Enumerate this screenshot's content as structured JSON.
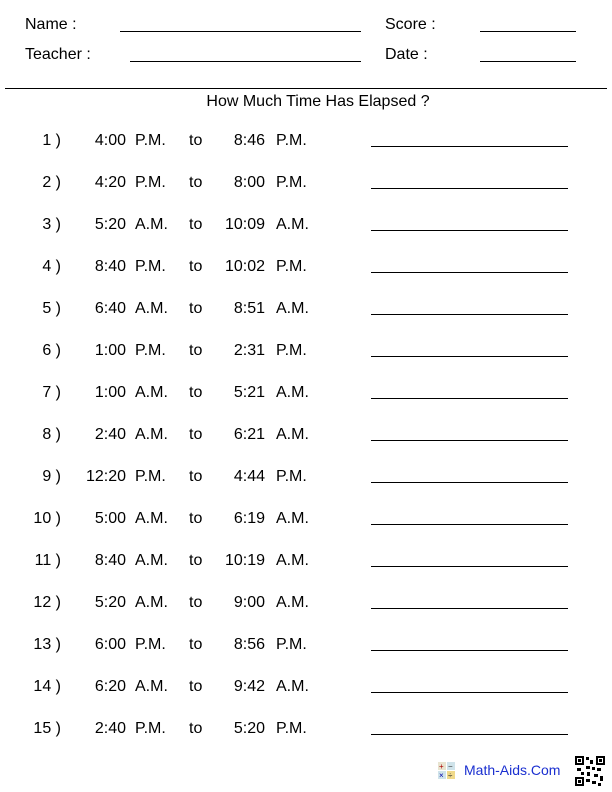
{
  "header": {
    "name_label": "Name :",
    "score_label": "Score :",
    "teacher_label": "Teacher :",
    "date_label": "Date :"
  },
  "title": "How Much Time Has Elapsed ?",
  "connector": "to",
  "problems": [
    {
      "num": "1 )",
      "start": "4:00",
      "start_period": "P.M.",
      "end": "8:46",
      "end_period": "P.M."
    },
    {
      "num": "2 )",
      "start": "4:20",
      "start_period": "P.M.",
      "end": "8:00",
      "end_period": "P.M."
    },
    {
      "num": "3 )",
      "start": "5:20",
      "start_period": "A.M.",
      "end": "10:09",
      "end_period": "A.M."
    },
    {
      "num": "4 )",
      "start": "8:40",
      "start_period": "P.M.",
      "end": "10:02",
      "end_period": "P.M."
    },
    {
      "num": "5 )",
      "start": "6:40",
      "start_period": "A.M.",
      "end": "8:51",
      "end_period": "A.M."
    },
    {
      "num": "6 )",
      "start": "1:00",
      "start_period": "P.M.",
      "end": "2:31",
      "end_period": "P.M."
    },
    {
      "num": "7 )",
      "start": "1:00",
      "start_period": "A.M.",
      "end": "5:21",
      "end_period": "A.M."
    },
    {
      "num": "8 )",
      "start": "2:40",
      "start_period": "A.M.",
      "end": "6:21",
      "end_period": "A.M."
    },
    {
      "num": "9 )",
      "start": "12:20",
      "start_period": "P.M.",
      "end": "4:44",
      "end_period": "P.M."
    },
    {
      "num": "10 )",
      "start": "5:00",
      "start_period": "A.M.",
      "end": "6:19",
      "end_period": "A.M."
    },
    {
      "num": "11 )",
      "start": "8:40",
      "start_period": "A.M.",
      "end": "10:19",
      "end_period": "A.M."
    },
    {
      "num": "12 )",
      "start": "5:20",
      "start_period": "A.M.",
      "end": "9:00",
      "end_period": "A.M."
    },
    {
      "num": "13 )",
      "start": "6:00",
      "start_period": "P.M.",
      "end": "8:56",
      "end_period": "P.M."
    },
    {
      "num": "14 )",
      "start": "6:20",
      "start_period": "A.M.",
      "end": "9:42",
      "end_period": "A.M."
    },
    {
      "num": "15 )",
      "start": "2:40",
      "start_period": "P.M.",
      "end": "5:20",
      "end_period": "P.M."
    }
  ],
  "footer": {
    "brand": "Math-Aids.Com",
    "brand_color": "#1a2fd0"
  }
}
